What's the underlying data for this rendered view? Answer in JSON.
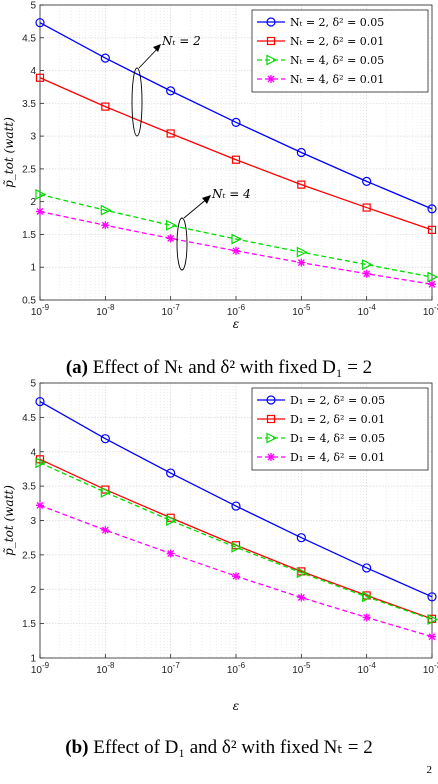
{
  "captions": [
    {
      "tag": "(a)",
      "text": "Effect of Nₜ and δ² with fixed D₁ = 2"
    },
    {
      "tag": "(b)",
      "text": "Effect of D₁ and δ² with fixed Nₜ = 2"
    }
  ],
  "footer_fragment": "2",
  "chart_data": [
    {
      "type": "line",
      "xlabel": "ε",
      "ylabel": "p̃_tot (watt)",
      "x": [
        "10^-9",
        "10^-8",
        "10^-7",
        "10^-6",
        "10^-5",
        "10^-4",
        "10^-3"
      ],
      "xscale": "log",
      "ylim": [
        0.5,
        5
      ],
      "yticks": [
        0.5,
        1,
        1.5,
        2,
        2.5,
        3,
        3.5,
        4,
        4.5,
        5
      ],
      "grid": true,
      "legend_position": "top-right",
      "annotations": [
        "Nₜ = 2",
        "Nₜ = 4"
      ],
      "series": [
        {
          "name": "Nₜ = 2, δ² = 0.05",
          "color": "#0000ff",
          "dash": "solid",
          "marker": "circle",
          "values": [
            4.73,
            4.19,
            3.69,
            3.21,
            2.75,
            2.31,
            1.89
          ]
        },
        {
          "name": "Nₜ = 2, δ² = 0.01",
          "color": "#ff0000",
          "dash": "solid",
          "marker": "square",
          "values": [
            3.89,
            3.45,
            3.04,
            2.64,
            2.26,
            1.91,
            1.57
          ]
        },
        {
          "name": "Nₜ = 4, δ² = 0.05",
          "color": "#00dd00",
          "dash": "dashed",
          "marker": "triangle-right",
          "values": [
            2.11,
            1.87,
            1.64,
            1.43,
            1.23,
            1.04,
            0.85
          ]
        },
        {
          "name": "Nₜ = 4, δ² = 0.01",
          "color": "#ff00ff",
          "dash": "dashed",
          "marker": "star",
          "values": [
            1.85,
            1.64,
            1.44,
            1.25,
            1.07,
            0.9,
            0.74
          ]
        }
      ]
    },
    {
      "type": "line",
      "xlabel": "ε",
      "ylabel": "p̃_tot (watt)",
      "x": [
        "10^-9",
        "10^-8",
        "10^-7",
        "10^-6",
        "10^-5",
        "10^-4",
        "10^-3"
      ],
      "xscale": "log",
      "ylim": [
        1,
        5
      ],
      "yticks": [
        1,
        1.5,
        2,
        2.5,
        3,
        3.5,
        4,
        4.5,
        5
      ],
      "grid": true,
      "legend_position": "top-right",
      "series": [
        {
          "name": "D₁ = 2, δ² = 0.05",
          "color": "#0000ff",
          "dash": "solid",
          "marker": "circle",
          "values": [
            4.73,
            4.19,
            3.69,
            3.21,
            2.75,
            2.31,
            1.89
          ]
        },
        {
          "name": "D₁ = 2, δ² = 0.01",
          "color": "#ff0000",
          "dash": "solid",
          "marker": "square",
          "values": [
            3.89,
            3.45,
            3.04,
            2.64,
            2.26,
            1.91,
            1.57
          ]
        },
        {
          "name": "D₁ = 4, δ² = 0.05",
          "color": "#00dd00",
          "dash": "dashed",
          "marker": "triangle-right",
          "values": [
            3.84,
            3.41,
            3.0,
            2.61,
            2.24,
            1.89,
            1.56
          ]
        },
        {
          "name": "D₁ = 4, δ² = 0.01",
          "color": "#ff00ff",
          "dash": "dashed",
          "marker": "star",
          "values": [
            3.22,
            2.86,
            2.52,
            2.19,
            1.88,
            1.59,
            1.31
          ]
        }
      ]
    }
  ]
}
